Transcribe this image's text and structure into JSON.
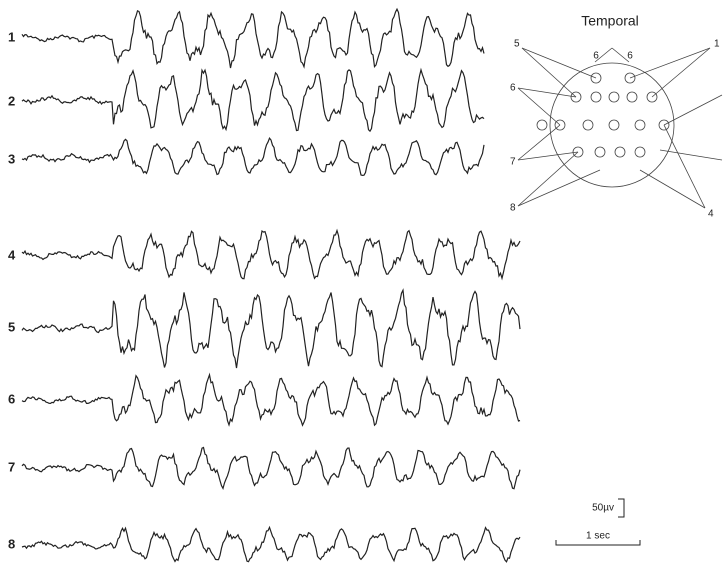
{
  "title": "Temporal",
  "channels": [
    "1",
    "2",
    "3",
    "4",
    "5",
    "6",
    "7",
    "8"
  ],
  "montage_labels": [
    "5",
    "1",
    "6",
    "7",
    "8",
    "4"
  ],
  "electrode_labels": [
    "6",
    "6"
  ],
  "scale": {
    "amplitude": "50µv",
    "time": "1 sec"
  }
}
